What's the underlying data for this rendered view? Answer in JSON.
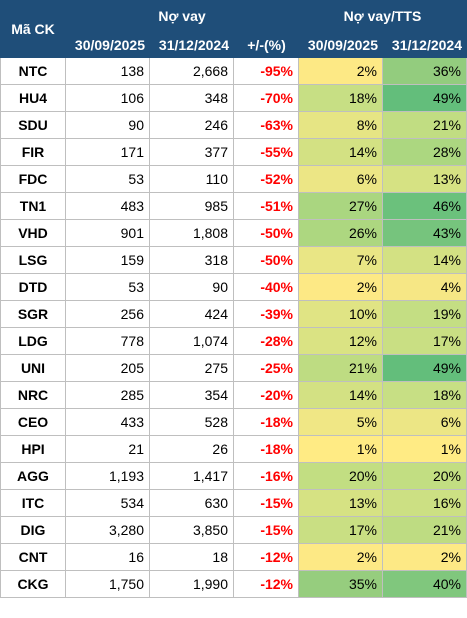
{
  "header": {
    "code": "Mã CK",
    "group_debt": "Nợ vay",
    "group_ratio": "Nợ vay/TTS",
    "col_d1": "30/09/2025",
    "col_d2": "31/12/2024",
    "col_chg": "+/-(%)",
    "col_r1": "30/09/2025",
    "col_r2": "31/12/2024"
  },
  "rows": [
    {
      "code": "NTC",
      "d1": "138",
      "d2": "2,668",
      "chg": "-95%",
      "r1": "2%",
      "r2": "36%",
      "r1_color": "#fde985",
      "r2_color": "#93cc7e"
    },
    {
      "code": "HU4",
      "d1": "106",
      "d2": "348",
      "chg": "-70%",
      "r1": "18%",
      "r2": "49%",
      "r1_color": "#c7df84",
      "r2_color": "#63be7b"
    },
    {
      "code": "SDU",
      "d1": "90",
      "d2": "246",
      "chg": "-63%",
      "r1": "8%",
      "r2": "21%",
      "r1_color": "#e6e584",
      "r2_color": "#c1dd82"
    },
    {
      "code": "FIR",
      "d1": "171",
      "d2": "377",
      "chg": "-55%",
      "r1": "14%",
      "r2": "28%",
      "r1_color": "#d3e183",
      "r2_color": "#acd780"
    },
    {
      "code": "FDC",
      "d1": "53",
      "d2": "110",
      "chg": "-52%",
      "r1": "6%",
      "r2": "13%",
      "r1_color": "#ece685",
      "r2_color": "#d6e283"
    },
    {
      "code": "TN1",
      "d1": "483",
      "d2": "985",
      "chg": "-51%",
      "r1": "27%",
      "r2": "46%",
      "r1_color": "#aad680",
      "r2_color": "#6bc17c"
    },
    {
      "code": "VHD",
      "d1": "901",
      "d2": "1,808",
      "chg": "-50%",
      "r1": "26%",
      "r2": "43%",
      "r1_color": "#add780",
      "r2_color": "#76c47d"
    },
    {
      "code": "LSG",
      "d1": "159",
      "d2": "318",
      "chg": "-50%",
      "r1": "7%",
      "r2": "14%",
      "r1_color": "#e9e685",
      "r2_color": "#d3e183"
    },
    {
      "code": "DTD",
      "d1": "53",
      "d2": "90",
      "chg": "-40%",
      "r1": "2%",
      "r2": "4%",
      "r1_color": "#fde985",
      "r2_color": "#f6e785"
    },
    {
      "code": "SGR",
      "d1": "256",
      "d2": "424",
      "chg": "-39%",
      "r1": "10%",
      "r2": "19%",
      "r1_color": "#e0e484",
      "r2_color": "#c4de83"
    },
    {
      "code": "LDG",
      "d1": "778",
      "d2": "1,074",
      "chg": "-28%",
      "r1": "12%",
      "r2": "17%",
      "r1_color": "#dae383",
      "r2_color": "#c9df83"
    },
    {
      "code": "UNI",
      "d1": "205",
      "d2": "275",
      "chg": "-25%",
      "r1": "21%",
      "r2": "49%",
      "r1_color": "#bedc82",
      "r2_color": "#63be7b"
    },
    {
      "code": "NRC",
      "d1": "285",
      "d2": "354",
      "chg": "-20%",
      "r1": "14%",
      "r2": "18%",
      "r1_color": "#d3e183",
      "r2_color": "#c7df84"
    },
    {
      "code": "CEO",
      "d1": "433",
      "d2": "528",
      "chg": "-18%",
      "r1": "5%",
      "r2": "6%",
      "r1_color": "#f0e785",
      "r2_color": "#ece685"
    },
    {
      "code": "HPI",
      "d1": "21",
      "d2": "26",
      "chg": "-18%",
      "r1": "1%",
      "r2": "1%",
      "r1_color": "#ffeb84",
      "r2_color": "#ffeb84"
    },
    {
      "code": "AGG",
      "d1": "1,193",
      "d2": "1,417",
      "chg": "-16%",
      "r1": "20%",
      "r2": "20%",
      "r1_color": "#c2de82",
      "r2_color": "#c2de82"
    },
    {
      "code": "ITC",
      "d1": "534",
      "d2": "630",
      "chg": "-15%",
      "r1": "13%",
      "r2": "16%",
      "r1_color": "#d6e283",
      "r2_color": "#cce083"
    },
    {
      "code": "DIG",
      "d1": "3,280",
      "d2": "3,850",
      "chg": "-15%",
      "r1": "17%",
      "r2": "21%",
      "r1_color": "#c9df83",
      "r2_color": "#bedc82"
    },
    {
      "code": "CNT",
      "d1": "16",
      "d2": "18",
      "chg": "-12%",
      "r1": "2%",
      "r2": "2%",
      "r1_color": "#fde985",
      "r2_color": "#fde985"
    },
    {
      "code": "CKG",
      "d1": "1,750",
      "d2": "1,990",
      "chg": "-12%",
      "r1": "35%",
      "r2": "40%",
      "r1_color": "#96cd7e",
      "r2_color": "#80c77d"
    }
  ]
}
